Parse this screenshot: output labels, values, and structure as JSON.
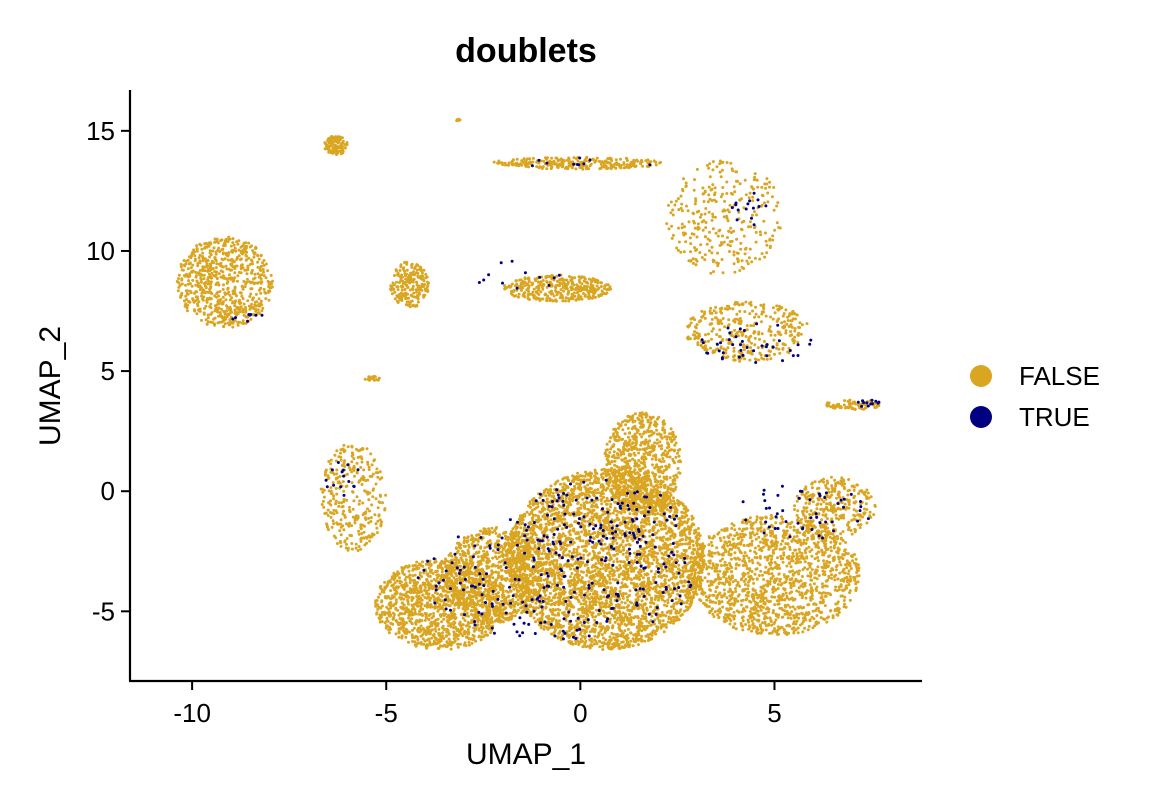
{
  "chart_data": {
    "type": "scatter",
    "title": "doublets",
    "xlabel": "UMAP_1",
    "ylabel": "UMAP_2",
    "xlim": [
      -11.6,
      8.8
    ],
    "ylim": [
      -7.9,
      16.7
    ],
    "xticks": [
      -10,
      -5,
      0,
      5
    ],
    "yticks": [
      -5,
      0,
      5,
      10,
      15
    ],
    "grid": false,
    "legend_position": "right",
    "series": [
      {
        "name": "FALSE",
        "color": "#DAA520",
        "clusters": [
          {
            "x": [
              -1.9,
              3.2
            ],
            "y": [
              -6.6,
              0.9
            ],
            "weight": 3600
          },
          {
            "x": [
              -5.3,
              -1.9
            ],
            "y": [
              -6.6,
              -2.8
            ],
            "weight": 1200
          },
          {
            "x": [
              -3.5,
              -1.0
            ],
            "y": [
              -5.5,
              -1.5
            ],
            "weight": 900
          },
          {
            "x": [
              0.6,
              2.6
            ],
            "y": [
              -1.0,
              3.3
            ],
            "weight": 700
          },
          {
            "x": [
              2.8,
              7.2
            ],
            "y": [
              -6.0,
              -1.0
            ],
            "weight": 1400
          },
          {
            "x": [
              5.5,
              7.6
            ],
            "y": [
              -2.0,
              0.6
            ],
            "weight": 300
          },
          {
            "x": [
              -10.4,
              -7.9
            ],
            "y": [
              6.8,
              10.6
            ],
            "weight": 700
          },
          {
            "x": [
              -4.9,
              -3.9
            ],
            "y": [
              7.6,
              9.6
            ],
            "weight": 200
          },
          {
            "x": [
              -2.0,
              0.8
            ],
            "y": [
              7.9,
              9.0
            ],
            "weight": 350
          },
          {
            "x": [
              2.7,
              5.9
            ],
            "y": [
              5.4,
              7.9
            ],
            "weight": 350
          },
          {
            "x": [
              -2.3,
              2.2
            ],
            "y": [
              13.4,
              13.9
            ],
            "weight": 260
          },
          {
            "x": [
              2.2,
              5.2
            ],
            "y": [
              9.0,
              13.8
            ],
            "weight": 300
          },
          {
            "x": [
              -6.6,
              -6.0
            ],
            "y": [
              14.0,
              14.8
            ],
            "weight": 120
          },
          {
            "x": [
              -6.7,
              -5.0
            ],
            "y": [
              -2.5,
              2.0
            ],
            "weight": 300
          },
          {
            "x": [
              6.3,
              7.8
            ],
            "y": [
              3.4,
              3.8
            ],
            "weight": 80
          },
          {
            "x": [
              -5.6,
              -5.1
            ],
            "y": [
              4.6,
              4.8
            ],
            "weight": 15
          },
          {
            "x": [
              -3.2,
              -3.1
            ],
            "y": [
              15.4,
              15.5
            ],
            "weight": 6
          }
        ]
      },
      {
        "name": "TRUE",
        "color": "#000080",
        "clusters": [
          {
            "x": [
              -4.2,
              3.0
            ],
            "y": [
              -6.2,
              -1.0
            ],
            "weight": 220
          },
          {
            "x": [
              -1.5,
              2.5
            ],
            "y": [
              -3.0,
              0.5
            ],
            "weight": 100
          },
          {
            "x": [
              4.0,
              7.5
            ],
            "y": [
              -2.0,
              0.3
            ],
            "weight": 50
          },
          {
            "x": [
              3.0,
              6.0
            ],
            "y": [
              5.3,
              7.0
            ],
            "weight": 40
          },
          {
            "x": [
              3.9,
              4.8
            ],
            "y": [
              11.0,
              12.5
            ],
            "weight": 15
          },
          {
            "x": [
              -9.0,
              -7.9
            ],
            "y": [
              7.0,
              7.4
            ],
            "weight": 8
          },
          {
            "x": [
              -6.6,
              -5.6
            ],
            "y": [
              -0.5,
              1.5
            ],
            "weight": 15
          },
          {
            "x": [
              7.0,
              7.8
            ],
            "y": [
              3.5,
              3.8
            ],
            "weight": 12
          },
          {
            "x": [
              -2.8,
              -0.5
            ],
            "y": [
              8.2,
              9.6
            ],
            "weight": 12
          },
          {
            "x": [
              -2.3,
              2.2
            ],
            "y": [
              13.4,
              13.9
            ],
            "weight": 10
          }
        ]
      }
    ]
  }
}
